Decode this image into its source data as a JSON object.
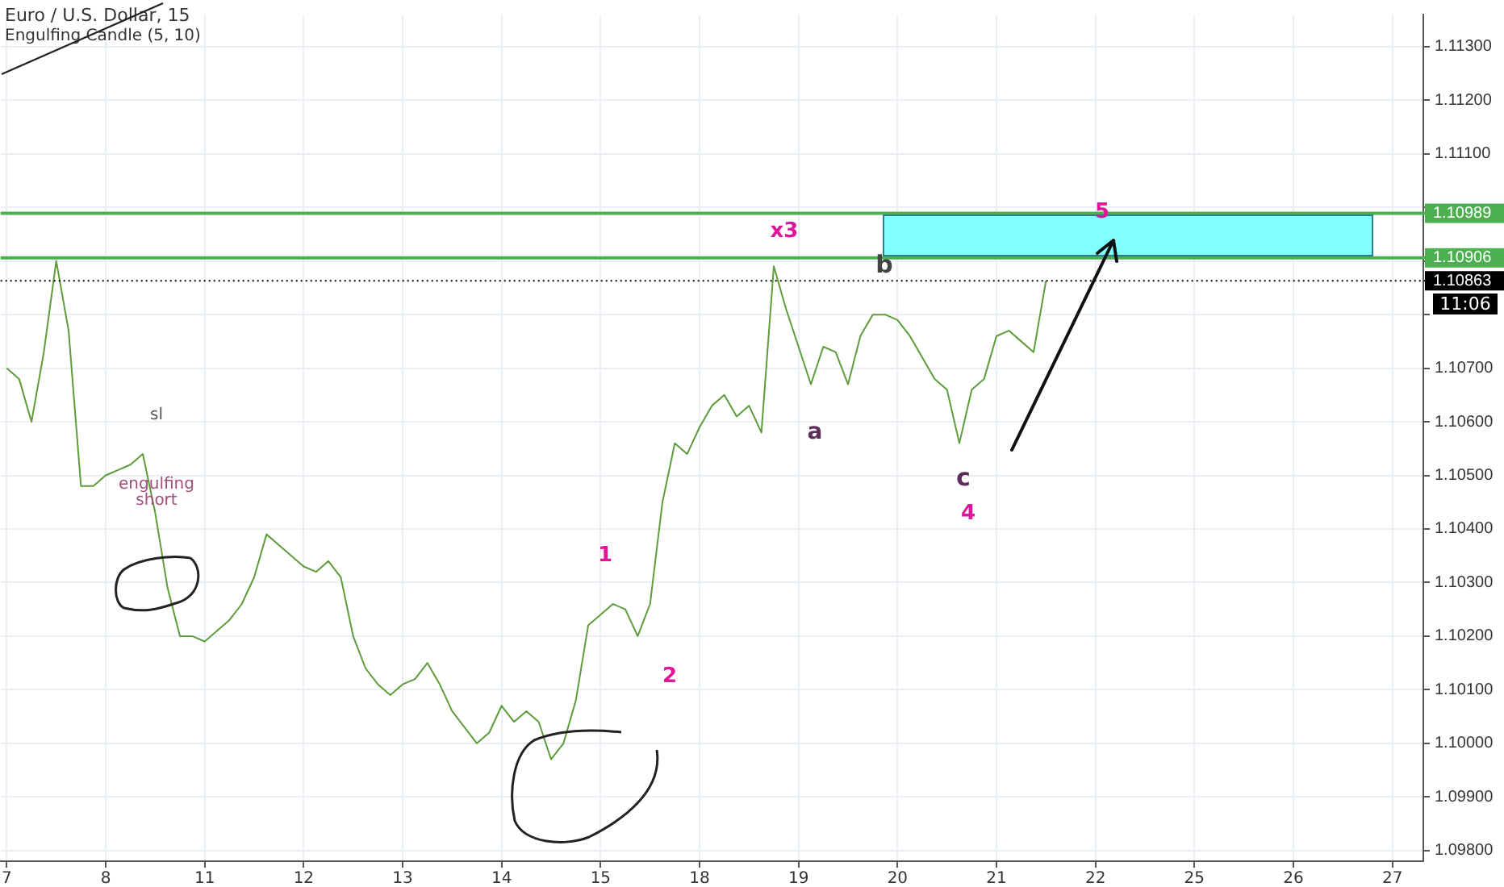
{
  "chart_data": {
    "type": "line",
    "title": "Euro / U.S. Dollar, 15",
    "subtitle": "Engulfing Candle (5, 10)",
    "categories": [
      "7",
      null,
      null,
      null,
      null,
      null,
      null,
      null,
      "8",
      null,
      null,
      null,
      null,
      null,
      null,
      null,
      "11",
      null,
      null,
      null,
      null,
      null,
      null,
      null,
      "12",
      null,
      null,
      null,
      null,
      null,
      null,
      null,
      "13",
      null,
      null,
      null,
      null,
      null,
      null,
      null,
      "14",
      null,
      null,
      null,
      null,
      null,
      null,
      null,
      "15",
      null,
      null,
      null,
      null,
      null,
      null,
      null,
      "18",
      null,
      null,
      null,
      null,
      null,
      null,
      null,
      "19",
      null,
      null,
      null,
      null,
      null,
      null,
      null,
      "20",
      null,
      null,
      null,
      null,
      null,
      null,
      null,
      "21",
      null,
      null,
      null,
      null,
      null,
      null,
      null,
      "22",
      null,
      null,
      null,
      null,
      null,
      null,
      null,
      "25",
      null,
      null,
      null,
      null,
      null,
      null,
      null,
      "26",
      null,
      null,
      null,
      null,
      null,
      null,
      null,
      "27",
      null,
      null
    ],
    "series": [
      {
        "color": "#5d9c3b",
        "values": [
          1.107,
          1.1068,
          1.106,
          1.1073,
          1.109,
          1.1077,
          1.1048,
          1.1048,
          1.105,
          1.1051,
          1.1052,
          1.1054,
          1.1043,
          1.1029,
          1.102,
          1.102,
          1.1019,
          1.1021,
          1.1023,
          1.1026,
          1.1031,
          1.1039,
          1.1037,
          1.1035,
          1.1033,
          1.1032,
          1.1034,
          1.1031,
          1.102,
          1.1014,
          1.1011,
          1.1009,
          1.1011,
          1.1012,
          1.1015,
          1.1011,
          1.1006,
          1.1003,
          1.1,
          1.1002,
          1.1007,
          1.1004,
          1.1006,
          1.1004,
          1.0997,
          1.1,
          1.1008,
          1.1022,
          1.1024,
          1.1026,
          1.1025,
          1.102,
          1.1026,
          1.1045,
          1.1056,
          1.1054,
          1.1059,
          1.1063,
          1.1065,
          1.1061,
          1.1063,
          1.1058,
          1.1089,
          1.1081,
          1.1074,
          1.1067,
          1.1074,
          1.1073,
          1.1067,
          1.1076,
          1.108,
          1.108,
          1.1079,
          1.1076,
          1.1072,
          1.1068,
          1.1066,
          1.1056,
          1.1066,
          1.1068,
          1.1076,
          1.1077,
          1.1075,
          1.1073,
          1.10863,
          null,
          null,
          null,
          null,
          null,
          null,
          null,
          null,
          null,
          null,
          null,
          null,
          null,
          null,
          null,
          null,
          null,
          null,
          null,
          null,
          null,
          null,
          null,
          null,
          null,
          null,
          null,
          null,
          null,
          null
        ]
      }
    ],
    "ylim": [
      1.0978,
      1.1136
    ],
    "yticks": [
      {
        "value": 1.098,
        "label": "1.09800"
      },
      {
        "value": 1.099,
        "label": "1.09900"
      },
      {
        "value": 1.1,
        "label": "1.10000"
      },
      {
        "value": 1.101,
        "label": "1.10100"
      },
      {
        "value": 1.102,
        "label": "1.10200"
      },
      {
        "value": 1.103,
        "label": "1.10300"
      },
      {
        "value": 1.104,
        "label": "1.10400"
      },
      {
        "value": 1.105,
        "label": "1.10500"
      },
      {
        "value": 1.106,
        "label": "1.10600"
      },
      {
        "value": 1.107,
        "label": "1.10700"
      },
      {
        "value": 1.108,
        "label": null
      },
      {
        "value": 1.109,
        "label": null
      },
      {
        "value": 1.11,
        "label": null
      },
      {
        "value": 1.111,
        "label": "1.11100"
      },
      {
        "value": 1.112,
        "label": "1.11200"
      },
      {
        "value": 1.113,
        "label": "1.11300"
      }
    ],
    "ref_lines": [
      {
        "axis": "y",
        "value": 1.10989,
        "label": "1.10989",
        "color": "#4caf50",
        "line_style": "solid"
      },
      {
        "axis": "y",
        "value": 1.10906,
        "label": "1.10906",
        "color": "#4caf50",
        "line_style": "solid"
      },
      {
        "axis": "y",
        "value": 1.10863,
        "label": "1.10863",
        "color": "#000000",
        "line_style": "dotted"
      }
    ],
    "annotations": [
      "sl",
      "engulfing short",
      "1",
      "2",
      "x3",
      "a",
      "b",
      "c",
      "4",
      "5",
      "11:06"
    ],
    "grid": true,
    "legend": false,
    "marker": "none",
    "line_style": "solid"
  }
}
